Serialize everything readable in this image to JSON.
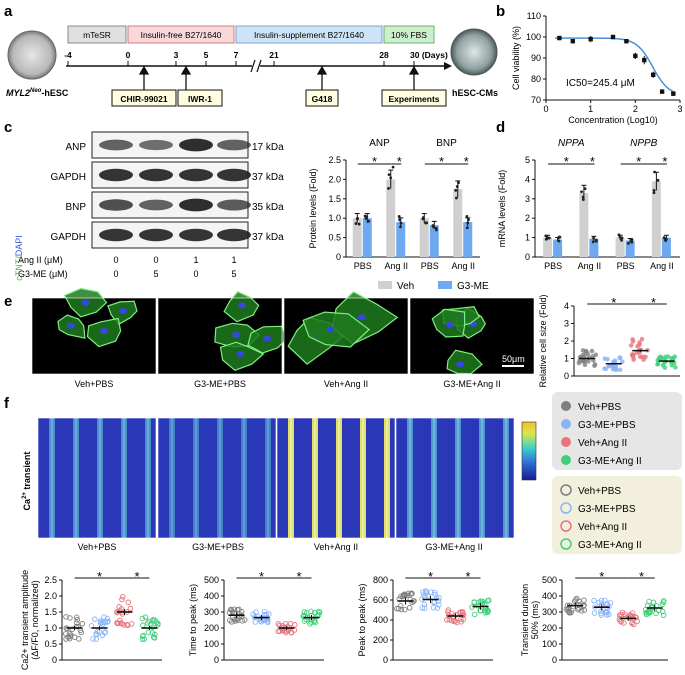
{
  "panels": {
    "a": "a",
    "b": "b",
    "c": "c",
    "d": "d",
    "e": "e",
    "f": "f"
  },
  "colors": {
    "veh": "#d0d0d0",
    "g3me": "#6ea8f0",
    "veh_pbs": "#7f7f7f",
    "g3me_pbs": "#8ab4f8",
    "veh_ang": "#e8747c",
    "g3me_ang": "#3ecf78"
  },
  "panel_a": {
    "days": [
      "-4",
      "0",
      "3",
      "5",
      "7",
      "21",
      "28",
      "30 (Days)"
    ],
    "stages": [
      "mTeSR",
      "Insulin-free B27/1640",
      "Insulin-supplement  B27/1640",
      "10% FBS"
    ],
    "markers": [
      "CHIR-99021",
      "IWR-1",
      "G418",
      "Experiments"
    ],
    "left_label_sup": "Neo",
    "left_label_pre": "MYL2",
    "left_label_post": "-hESC",
    "right_label": "hESC-CMs"
  },
  "panel_b": {
    "ylabel": "Cell viability (%)",
    "xlabel": "Concentration (Log10)",
    "ic50": "IC50=245.4 μM",
    "xticks": [
      "0",
      "1",
      "2",
      "3"
    ],
    "yticks": [
      "70",
      "80",
      "90",
      "100",
      "110"
    ]
  },
  "panel_c_blot": {
    "rows": [
      "ANP",
      "GAPDH",
      "BNP",
      "GAPDH"
    ],
    "kda": [
      "17 kDa",
      "37 kDa",
      "35 kDa",
      "37 kDa"
    ],
    "treat_rows": [
      {
        "label": "Ang II (μM)",
        "values": [
          "0",
          "0",
          "1",
          "1"
        ]
      },
      {
        "label": "G3-ME (μM)",
        "values": [
          "0",
          "5",
          "0",
          "5"
        ]
      }
    ]
  },
  "chart_data": [
    {
      "type": "scatter",
      "title": "",
      "xlabel": "Concentration (Log10)",
      "ylabel": "Cell viability (%)",
      "xlim": [
        0,
        3
      ],
      "ylim": [
        70,
        110
      ],
      "x": [
        0.3,
        0.6,
        1.0,
        1.5,
        1.8,
        2.0,
        2.2,
        2.4,
        2.6,
        2.85
      ],
      "y": [
        99.5,
        98,
        99,
        100,
        98,
        91,
        89,
        82,
        74,
        73
      ],
      "yerr": [
        1,
        1,
        1.5,
        1,
        1,
        1.5,
        2,
        1.5,
        1,
        1
      ]
    },
    {
      "type": "bar",
      "ylabel": "Protein levels (Fold)",
      "ylim": [
        0,
        2.5
      ],
      "yticks": [
        "0",
        "0.5",
        "1.0",
        "1.5",
        "2.0",
        "2.5"
      ],
      "groups": [
        "ANP",
        "BNP"
      ],
      "categories": [
        "PBS",
        "Ang II",
        "PBS",
        "Ang II"
      ],
      "series": [
        {
          "name": "Veh",
          "values": [
            1.0,
            2.0,
            1.0,
            1.75
          ]
        },
        {
          "name": "G3-ME",
          "values": [
            1.0,
            0.9,
            0.82,
            0.9
          ]
        }
      ],
      "sig": [
        "*",
        "*",
        "*",
        "*"
      ]
    },
    {
      "type": "bar",
      "ylabel": "mRNA levels (Fold)",
      "ylim": [
        0,
        5
      ],
      "yticks": [
        "0",
        "1",
        "2",
        "3",
        "4",
        "5"
      ],
      "groups": [
        "NPPA",
        "NPPB"
      ],
      "categories": [
        "PBS",
        "Ang II",
        "PBS",
        "Ang II"
      ],
      "series": [
        {
          "name": "Veh",
          "values": [
            1.0,
            3.3,
            1.0,
            3.9
          ]
        },
        {
          "name": "G3-ME",
          "values": [
            0.9,
            0.95,
            0.85,
            1.0
          ]
        }
      ],
      "sig": [
        "*",
        "*",
        "*",
        "*"
      ]
    },
    {
      "type": "scatter",
      "ylabel": "Relative cell size (Fold)",
      "ylim": [
        0,
        4
      ],
      "yticks": [
        "0",
        "1",
        "2",
        "3",
        "4"
      ],
      "means": [
        1.0,
        0.7,
        1.45,
        0.85
      ],
      "sig": [
        "*",
        "*"
      ]
    },
    {
      "type": "scatter",
      "ylabel": "Ca2+ transient amplitude (ΔF/F0, normalized)",
      "ylabel_top": "Ca2+ transient amplitude",
      "ylabel_bot": "(ΔF/F0, normalized)",
      "ylim": [
        0,
        2.5
      ],
      "yticks": [
        "0",
        "0.5",
        "1.0",
        "1.5",
        "2.0",
        "2.5"
      ],
      "means": [
        1.0,
        1.0,
        1.5,
        1.0
      ],
      "sig": [
        "*",
        "*"
      ]
    },
    {
      "type": "scatter",
      "ylabel": "Time to peak (ms)",
      "ylim": [
        0,
        500
      ],
      "yticks": [
        "0",
        "100",
        "200",
        "300",
        "400",
        "500"
      ],
      "means": [
        280,
        265,
        200,
        265
      ],
      "sig": [
        "*",
        "*"
      ]
    },
    {
      "type": "scatter",
      "ylabel": "Peak to peak (ms)",
      "ylim": [
        0,
        800
      ],
      "yticks": [
        "0",
        "200",
        "400",
        "600",
        "800"
      ],
      "means": [
        590,
        605,
        440,
        535
      ],
      "sig": [
        "*",
        "*"
      ]
    },
    {
      "type": "scatter",
      "ylabel": "Transient duration 50% (ms)",
      "ylabel_top": "Transient duration",
      "ylabel_bot": "50% (ms)",
      "ylim": [
        0,
        500
      ],
      "yticks": [
        "0",
        "100",
        "200",
        "300",
        "400",
        "500"
      ],
      "means": [
        340,
        330,
        260,
        325
      ],
      "sig": [
        "*",
        "*"
      ]
    }
  ],
  "legend_cd": [
    "Veh",
    "G3-ME"
  ],
  "legend_filled": [
    "Veh+PBS",
    "G3-ME+PBS",
    "Veh+Ang II",
    "G3-ME+Ang II"
  ],
  "legend_open": [
    "Veh+PBS",
    "G3-ME+PBS",
    "Veh+Ang II",
    "G3-ME+Ang II"
  ],
  "panel_e": {
    "side_label_a": "cTNT/",
    "side_label_b": "DAPI",
    "scale": "50μm",
    "captions": [
      "Veh+PBS",
      "G3-ME+PBS",
      "Veh+Ang II",
      "G3-ME+Ang II"
    ]
  },
  "panel_f": {
    "side_label": "Ca2+ transient",
    "captions": [
      "Veh+PBS",
      "G3-ME+PBS",
      "Veh+Ang II",
      "G3-ME+Ang II"
    ]
  }
}
